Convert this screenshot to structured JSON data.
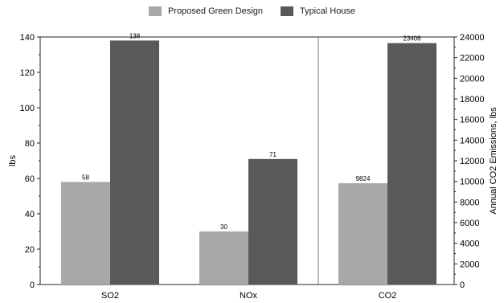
{
  "chart_data": {
    "type": "bar",
    "categories": [
      "SO2",
      "NOx",
      "CO2"
    ],
    "series": [
      {
        "name": "Proposed Green Design",
        "values": [
          58,
          30,
          9824
        ],
        "color": "#a8a8a8"
      },
      {
        "name": "Typical House",
        "values": [
          138,
          71,
          23406
        ],
        "color": "#595959"
      }
    ],
    "data_labels": {
      "Proposed Green Design": [
        "58",
        "30",
        "9824"
      ],
      "Typical House": [
        "138",
        "71",
        "23406"
      ]
    },
    "left_axis": {
      "label": "lbs",
      "range": [
        0,
        140
      ],
      "ticks": [
        "0",
        "20",
        "40",
        "60",
        "80",
        "100",
        "120",
        "140"
      ],
      "applies_to": [
        "SO2",
        "NOx"
      ]
    },
    "right_axis": {
      "label": "Annual CO2 Emissions, lbs",
      "range": [
        0,
        24000
      ],
      "ticks": [
        "0",
        "2000",
        "4000",
        "6000",
        "8000",
        "10000",
        "12000",
        "14000",
        "16000",
        "18000",
        "20000",
        "22000",
        "24000"
      ],
      "applies_to": [
        "CO2"
      ]
    },
    "legend_position": "top-center",
    "grid": false
  }
}
